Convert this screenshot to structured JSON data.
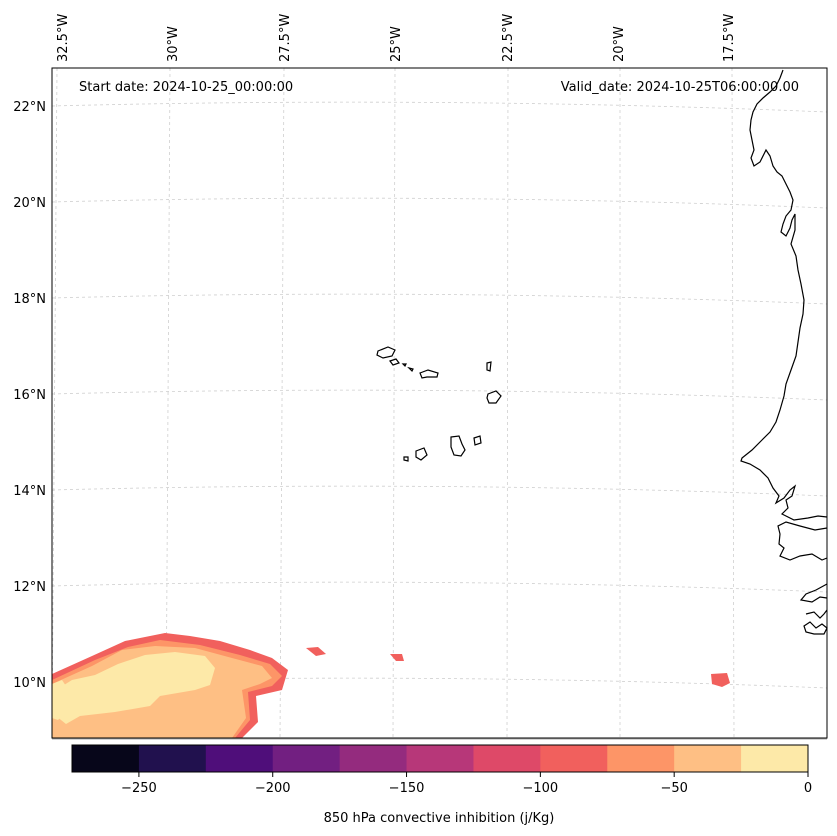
{
  "header": {
    "start_date": "Start date: 2024-10-25_00:00:00",
    "valid_date": "Valid_date: 2024-10-25T06:00:00.00"
  },
  "axes": {
    "lon_labels": [
      "32.5°W",
      "30°W",
      "27.5°W",
      "25°W",
      "22.5°W",
      "20°W",
      "17.5°W"
    ],
    "lat_labels": [
      "22°N",
      "20°N",
      "18°N",
      "16°N",
      "14°N",
      "12°N",
      "10°N"
    ]
  },
  "colorbar": {
    "label": "850 hPa convective inhibition (j/Kg)",
    "ticks": [
      "−250",
      "−200",
      "−150",
      "−100",
      "−50",
      "0"
    ],
    "tick_values": [
      -250,
      -200,
      -150,
      -100,
      -50,
      0
    ],
    "range": [
      -275,
      0
    ],
    "bins": [
      {
        "from": -275,
        "to": -250,
        "color": "#07061a"
      },
      {
        "from": -250,
        "to": -225,
        "color": "#21114e"
      },
      {
        "from": -225,
        "to": -200,
        "color": "#4f0e7a"
      },
      {
        "from": -200,
        "to": -175,
        "color": "#721f81"
      },
      {
        "from": -175,
        "to": -150,
        "color": "#942b7e"
      },
      {
        "from": -150,
        "to": -125,
        "color": "#b73779"
      },
      {
        "from": -125,
        "to": -100,
        "color": "#de4968"
      },
      {
        "from": -100,
        "to": -75,
        "color": "#f1605d"
      },
      {
        "from": -75,
        "to": -50,
        "color": "#fd9567"
      },
      {
        "from": -50,
        "to": -25,
        "color": "#febf84"
      },
      {
        "from": -25,
        "to": 0,
        "color": "#fde9a8"
      }
    ]
  }
}
